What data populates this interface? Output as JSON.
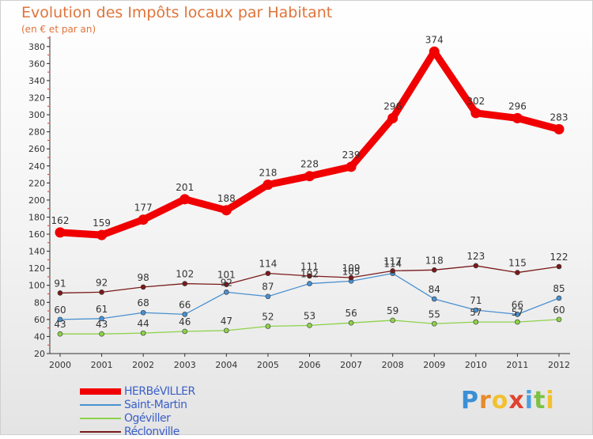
{
  "title": "Evolution des Impôts locaux par Habitant",
  "subtitle": "(en € et par an)",
  "brand": {
    "letters": [
      "P",
      "r",
      "o",
      "x",
      "i",
      "t",
      "i"
    ],
    "colors": [
      "#3a8fd6",
      "#e8892b",
      "#f2c12e",
      "#e0432f",
      "#4aa0e0",
      "#7cc242",
      "#f2c12e"
    ]
  },
  "chart_data": {
    "type": "line",
    "title": "Evolution des Impôts locaux par Habitant",
    "ylabel": "(en € et par an)",
    "xlabel": "",
    "x": [
      "2000",
      "2001",
      "2002",
      "2003",
      "2004",
      "2005",
      "2006",
      "2007",
      "2008",
      "2009",
      "2010",
      "2011",
      "2012"
    ],
    "ylim": [
      20,
      390
    ],
    "yticks": [
      20,
      40,
      60,
      80,
      100,
      120,
      140,
      160,
      180,
      200,
      220,
      240,
      260,
      280,
      300,
      320,
      340,
      360,
      380
    ],
    "grid": false,
    "legend_position": "bottom-left",
    "series": [
      {
        "name": "HERBéVILLER",
        "color": "#f00000",
        "labels": [
          "162",
          "159",
          "177",
          "201",
          "188",
          "218",
          "228",
          "239",
          "296",
          "374",
          "302",
          "296",
          "283"
        ],
        "values": [
          162,
          159,
          177,
          201,
          188,
          218,
          228,
          239,
          296,
          374,
          302,
          296,
          283
        ]
      },
      {
        "name": "Saint-Martin",
        "color": "#4a90d0",
        "labels": [
          "60",
          "61",
          "68",
          "66",
          "92",
          "87",
          "102",
          "105",
          "114",
          "84",
          "71",
          "66",
          "85"
        ],
        "values": [
          60,
          61,
          68,
          66,
          92,
          87,
          102,
          105,
          114,
          84,
          71,
          66,
          85
        ]
      },
      {
        "name": "Ogéviller",
        "color": "#8dd24a",
        "labels": [
          "43",
          "43",
          "44",
          "46",
          "47",
          "52",
          "53",
          "56",
          "59",
          "55",
          "57",
          "57",
          "60"
        ],
        "values": [
          43,
          43,
          44,
          46,
          47,
          52,
          53,
          56,
          59,
          55,
          57,
          57,
          60
        ]
      },
      {
        "name": "Réclonville",
        "color": "#7a1a1a",
        "labels": [
          "91",
          "92",
          "98",
          "102",
          "101",
          "114",
          "111",
          "109",
          "117",
          "118",
          "123",
          "115",
          "122"
        ],
        "values": [
          91,
          92,
          98,
          102,
          101,
          114,
          111,
          109,
          117,
          118,
          123,
          115,
          122
        ]
      }
    ]
  }
}
